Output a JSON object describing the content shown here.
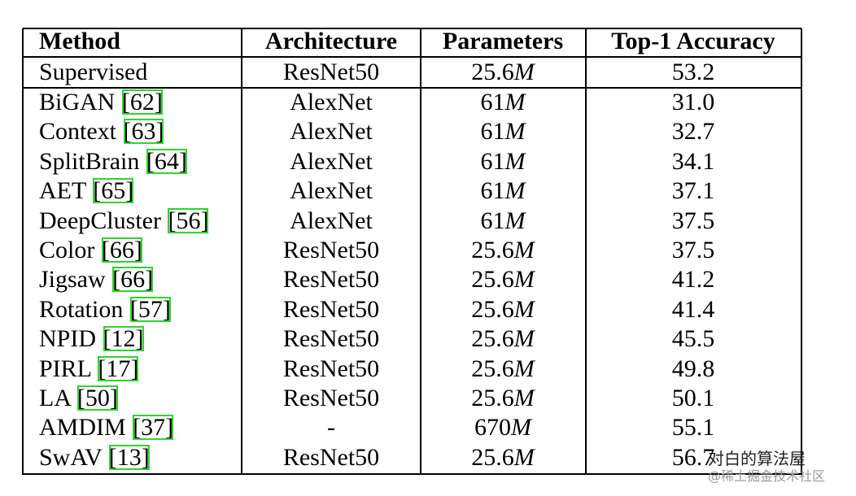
{
  "table": {
    "header": [
      "Method",
      "Architecture",
      "Parameters",
      "Top-1 Accuracy"
    ],
    "rows": [
      {
        "method": "Supervised",
        "cite": null,
        "architecture": "ResNet50",
        "params": "25.6",
        "params_unit": "M",
        "accuracy": "53.2"
      },
      {
        "method": "BiGAN",
        "cite": "[62]",
        "architecture": "AlexNet",
        "params": "61",
        "params_unit": "M",
        "accuracy": "31.0"
      },
      {
        "method": "Context",
        "cite": "[63]",
        "architecture": "AlexNet",
        "params": "61",
        "params_unit": "M",
        "accuracy": "32.7"
      },
      {
        "method": "SplitBrain",
        "cite": "[64]",
        "architecture": "AlexNet",
        "params": "61",
        "params_unit": "M",
        "accuracy": "34.1"
      },
      {
        "method": "AET",
        "cite": "[65]",
        "architecture": "AlexNet",
        "params": "61",
        "params_unit": "M",
        "accuracy": "37.1"
      },
      {
        "method": "DeepCluster",
        "cite": "[56]",
        "architecture": "AlexNet",
        "params": "61",
        "params_unit": "M",
        "accuracy": "37.5"
      },
      {
        "method": "Color",
        "cite": "[66]",
        "architecture": "ResNet50",
        "params": "25.6",
        "params_unit": "M",
        "accuracy": "37.5"
      },
      {
        "method": "Jigsaw",
        "cite": "[66]",
        "architecture": "ResNet50",
        "params": "25.6",
        "params_unit": "M",
        "accuracy": "41.2"
      },
      {
        "method": "Rotation",
        "cite": "[57]",
        "architecture": "ResNet50",
        "params": "25.6",
        "params_unit": "M",
        "accuracy": "41.4"
      },
      {
        "method": "NPID",
        "cite": "[12]",
        "architecture": "ResNet50",
        "params": "25.6",
        "params_unit": "M",
        "accuracy": "45.5"
      },
      {
        "method": "PIRL",
        "cite": "[17]",
        "architecture": "ResNet50",
        "params": "25.6",
        "params_unit": "M",
        "accuracy": "49.8"
      },
      {
        "method": "LA",
        "cite": "[50]",
        "architecture": "ResNet50",
        "params": "25.6",
        "params_unit": "M",
        "accuracy": "50.1"
      },
      {
        "method": "AMDIM",
        "cite": "[37]",
        "architecture": "-",
        "params": "670",
        "params_unit": "M",
        "accuracy": "55.1"
      },
      {
        "method": "SwAV",
        "cite": "[13]",
        "architecture": "ResNet50",
        "params": "25.6",
        "params_unit": "M",
        "accuracy": "56.7"
      }
    ]
  },
  "watermark": {
    "title": "对白的算法屋",
    "subtitle": "@稀土掘金技术社区"
  }
}
